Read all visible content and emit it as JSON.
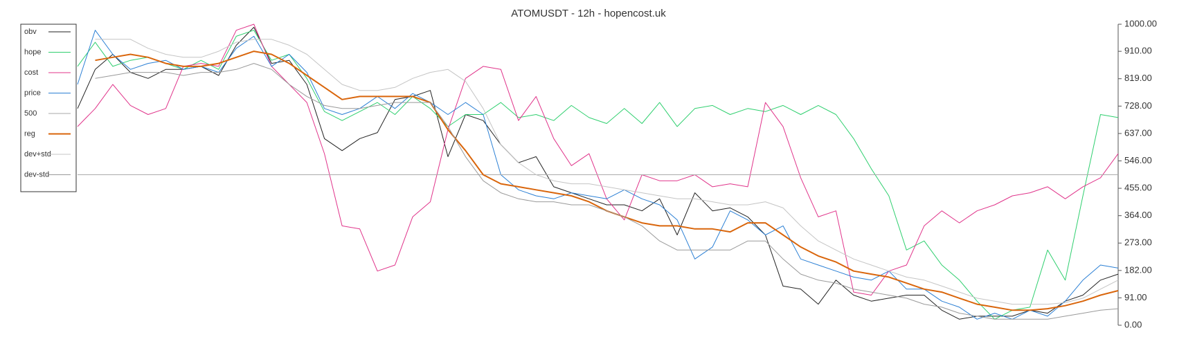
{
  "chart_data": {
    "type": "line",
    "title": "ATOMUSDT - 12h - hopencost.uk",
    "categories": [
      null,
      null,
      null,
      null,
      null,
      null,
      null,
      null,
      null,
      null,
      null,
      null,
      null,
      null,
      null,
      null,
      null,
      null,
      null,
      null,
      null,
      null,
      null,
      null,
      null,
      null,
      null,
      null,
      null,
      null,
      null,
      null,
      null,
      null,
      null,
      null,
      null,
      null,
      null,
      null,
      null,
      null,
      null,
      null,
      null,
      null,
      null,
      null,
      null,
      null,
      null,
      null,
      null,
      null,
      null,
      null,
      null,
      null,
      null,
      null
    ],
    "ylim": [
      0,
      1000
    ],
    "yticks": [
      {
        "value": 0,
        "label": "0.00"
      },
      {
        "value": 91,
        "label": "91.00"
      },
      {
        "value": 182,
        "label": "182.00"
      },
      {
        "value": 273,
        "label": "273.00"
      },
      {
        "value": 364,
        "label": "364.00"
      },
      {
        "value": 455,
        "label": "455.00"
      },
      {
        "value": 546,
        "label": "546.00"
      },
      {
        "value": 637,
        "label": "637.00"
      },
      {
        "value": 728,
        "label": "728.00"
      },
      {
        "value": 819,
        "label": "819.00"
      },
      {
        "value": 910,
        "label": "910.00"
      },
      {
        "value": 1000,
        "label": "1000.00"
      }
    ],
    "legend": "upper left",
    "series": [
      {
        "name": "obv",
        "color": "#222222",
        "width": 1,
        "values": [
          720,
          850,
          900,
          840,
          820,
          850,
          850,
          860,
          830,
          930,
          990,
          870,
          880,
          800,
          620,
          580,
          620,
          640,
          750,
          760,
          780,
          560,
          700,
          680,
          600,
          540,
          560,
          460,
          440,
          420,
          400,
          400,
          380,
          420,
          300,
          440,
          380,
          390,
          360,
          300,
          130,
          120,
          70,
          150,
          100,
          80,
          90,
          100,
          100,
          50,
          20,
          30,
          30,
          30,
          50,
          40,
          80,
          100,
          150,
          170
        ]
      },
      {
        "name": "hope",
        "color": "#2ecf6e",
        "width": 1,
        "values": [
          860,
          940,
          860,
          880,
          890,
          870,
          850,
          880,
          850,
          960,
          980,
          880,
          900,
          820,
          710,
          680,
          710,
          740,
          700,
          760,
          720,
          660,
          700,
          700,
          740,
          690,
          700,
          680,
          730,
          690,
          670,
          720,
          670,
          740,
          660,
          720,
          730,
          700,
          720,
          710,
          730,
          700,
          730,
          700,
          620,
          520,
          430,
          250,
          280,
          200,
          150,
          80,
          20,
          50,
          60,
          250,
          150,
          430,
          700,
          690
        ]
      },
      {
        "name": "cost",
        "color": "#e0338a",
        "width": 1,
        "values": [
          660,
          720,
          800,
          730,
          700,
          720,
          860,
          870,
          860,
          980,
          1000,
          860,
          800,
          740,
          570,
          330,
          320,
          180,
          200,
          360,
          410,
          650,
          820,
          860,
          850,
          680,
          760,
          620,
          530,
          570,
          420,
          350,
          500,
          480,
          480,
          500,
          460,
          470,
          460,
          740,
          660,
          490,
          360,
          380,
          110,
          100,
          180,
          200,
          330,
          380,
          340,
          380,
          400,
          430,
          440,
          460,
          420,
          460,
          490,
          570
        ]
      },
      {
        "name": "price",
        "color": "#2a7fd4",
        "width": 1,
        "values": [
          800,
          980,
          900,
          850,
          870,
          880,
          850,
          860,
          840,
          920,
          960,
          860,
          900,
          840,
          720,
          700,
          720,
          760,
          720,
          770,
          740,
          700,
          740,
          700,
          500,
          450,
          430,
          420,
          440,
          430,
          420,
          450,
          420,
          400,
          350,
          220,
          260,
          380,
          350,
          300,
          330,
          220,
          200,
          180,
          160,
          150,
          180,
          120,
          120,
          80,
          60,
          20,
          40,
          20,
          50,
          30,
          80,
          150,
          200,
          190
        ]
      },
      {
        "name": "500",
        "color": "#aaaaaa",
        "width": 1,
        "values": [
          500,
          500,
          500,
          500,
          500,
          500,
          500,
          500,
          500,
          500,
          500,
          500,
          500,
          500,
          500,
          500,
          500,
          500,
          500,
          500,
          500,
          500,
          500,
          500,
          500,
          500,
          500,
          500,
          500,
          500,
          500,
          500,
          500,
          500,
          500,
          500,
          500,
          500,
          500,
          500,
          500,
          500,
          500,
          500,
          500,
          500,
          500,
          500,
          500,
          500,
          500,
          500,
          500,
          500,
          500,
          500,
          500,
          500,
          500,
          500
        ]
      },
      {
        "name": "reg",
        "color": "#d9650b",
        "width": 2,
        "values": [
          null,
          880,
          890,
          900,
          890,
          870,
          860,
          860,
          870,
          890,
          910,
          900,
          870,
          830,
          790,
          750,
          760,
          760,
          760,
          760,
          740,
          650,
          580,
          500,
          470,
          460,
          450,
          440,
          430,
          410,
          380,
          360,
          340,
          330,
          330,
          320,
          320,
          310,
          340,
          340,
          300,
          260,
          230,
          210,
          180,
          170,
          160,
          140,
          120,
          110,
          90,
          70,
          60,
          50,
          50,
          55,
          65,
          80,
          100,
          115
        ]
      },
      {
        "name": "dev+std",
        "color": "#c4c4c4",
        "width": 1,
        "values": [
          null,
          950,
          950,
          950,
          920,
          900,
          890,
          890,
          910,
          940,
          950,
          950,
          930,
          900,
          850,
          800,
          780,
          780,
          790,
          820,
          840,
          850,
          810,
          720,
          600,
          540,
          500,
          480,
          470,
          470,
          460,
          450,
          440,
          430,
          420,
          420,
          410,
          400,
          400,
          410,
          390,
          330,
          280,
          250,
          220,
          200,
          180,
          160,
          150,
          130,
          110,
          90,
          80,
          70,
          70,
          70,
          75,
          90,
          120,
          150
        ]
      },
      {
        "name": "dev-std",
        "color": "#999999",
        "width": 1,
        "values": [
          null,
          820,
          830,
          840,
          840,
          840,
          830,
          840,
          840,
          850,
          870,
          850,
          800,
          760,
          730,
          720,
          720,
          730,
          740,
          740,
          740,
          660,
          560,
          480,
          440,
          420,
          410,
          410,
          400,
          400,
          380,
          360,
          330,
          280,
          250,
          250,
          250,
          250,
          280,
          280,
          220,
          170,
          150,
          140,
          120,
          110,
          100,
          90,
          70,
          60,
          40,
          30,
          20,
          20,
          20,
          20,
          30,
          40,
          50,
          55
        ]
      }
    ]
  }
}
